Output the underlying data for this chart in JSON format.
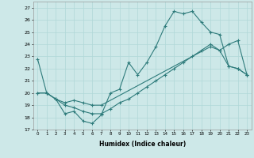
{
  "xlabel": "Humidex (Indice chaleur)",
  "xlim": [
    -0.5,
    23.5
  ],
  "ylim": [
    17,
    27.5
  ],
  "yticks": [
    17,
    18,
    19,
    20,
    21,
    22,
    23,
    24,
    25,
    26,
    27
  ],
  "xticks": [
    0,
    1,
    2,
    3,
    4,
    5,
    6,
    7,
    8,
    9,
    10,
    11,
    12,
    13,
    14,
    15,
    16,
    17,
    18,
    19,
    20,
    21,
    22,
    23
  ],
  "bg_color": "#cde8e8",
  "line_color": "#2e7b7b",
  "grid_color": "#b0d8d8",
  "line1_x": [
    0,
    1,
    2,
    3,
    4,
    5,
    6,
    7,
    8,
    9,
    10,
    11,
    12,
    13,
    14,
    15,
    16,
    17,
    18,
    19,
    20,
    21,
    22,
    23
  ],
  "line1_y": [
    22.8,
    20.0,
    19.5,
    18.3,
    18.5,
    17.7,
    17.5,
    18.2,
    20.0,
    20.3,
    22.5,
    21.5,
    22.5,
    23.8,
    25.5,
    26.7,
    26.5,
    26.7,
    25.8,
    25.0,
    24.8,
    22.2,
    22.0,
    21.5
  ],
  "line2_x": [
    0,
    1,
    2,
    3,
    4,
    5,
    6,
    7,
    19,
    20,
    21,
    22,
    23
  ],
  "line2_y": [
    20.0,
    20.0,
    19.5,
    19.2,
    19.4,
    19.2,
    19.0,
    19.0,
    23.8,
    23.5,
    22.2,
    22.0,
    21.5
  ],
  "line3_x": [
    0,
    1,
    2,
    3,
    4,
    5,
    6,
    7,
    8,
    9,
    10,
    11,
    12,
    13,
    14,
    15,
    16,
    17,
    18,
    19,
    20,
    21,
    22,
    23
  ],
  "line3_y": [
    20.0,
    20.0,
    19.5,
    19.0,
    18.8,
    18.5,
    18.3,
    18.3,
    18.7,
    19.2,
    19.5,
    20.0,
    20.5,
    21.0,
    21.5,
    22.0,
    22.5,
    23.0,
    23.5,
    24.0,
    23.5,
    24.0,
    24.3,
    21.5
  ]
}
